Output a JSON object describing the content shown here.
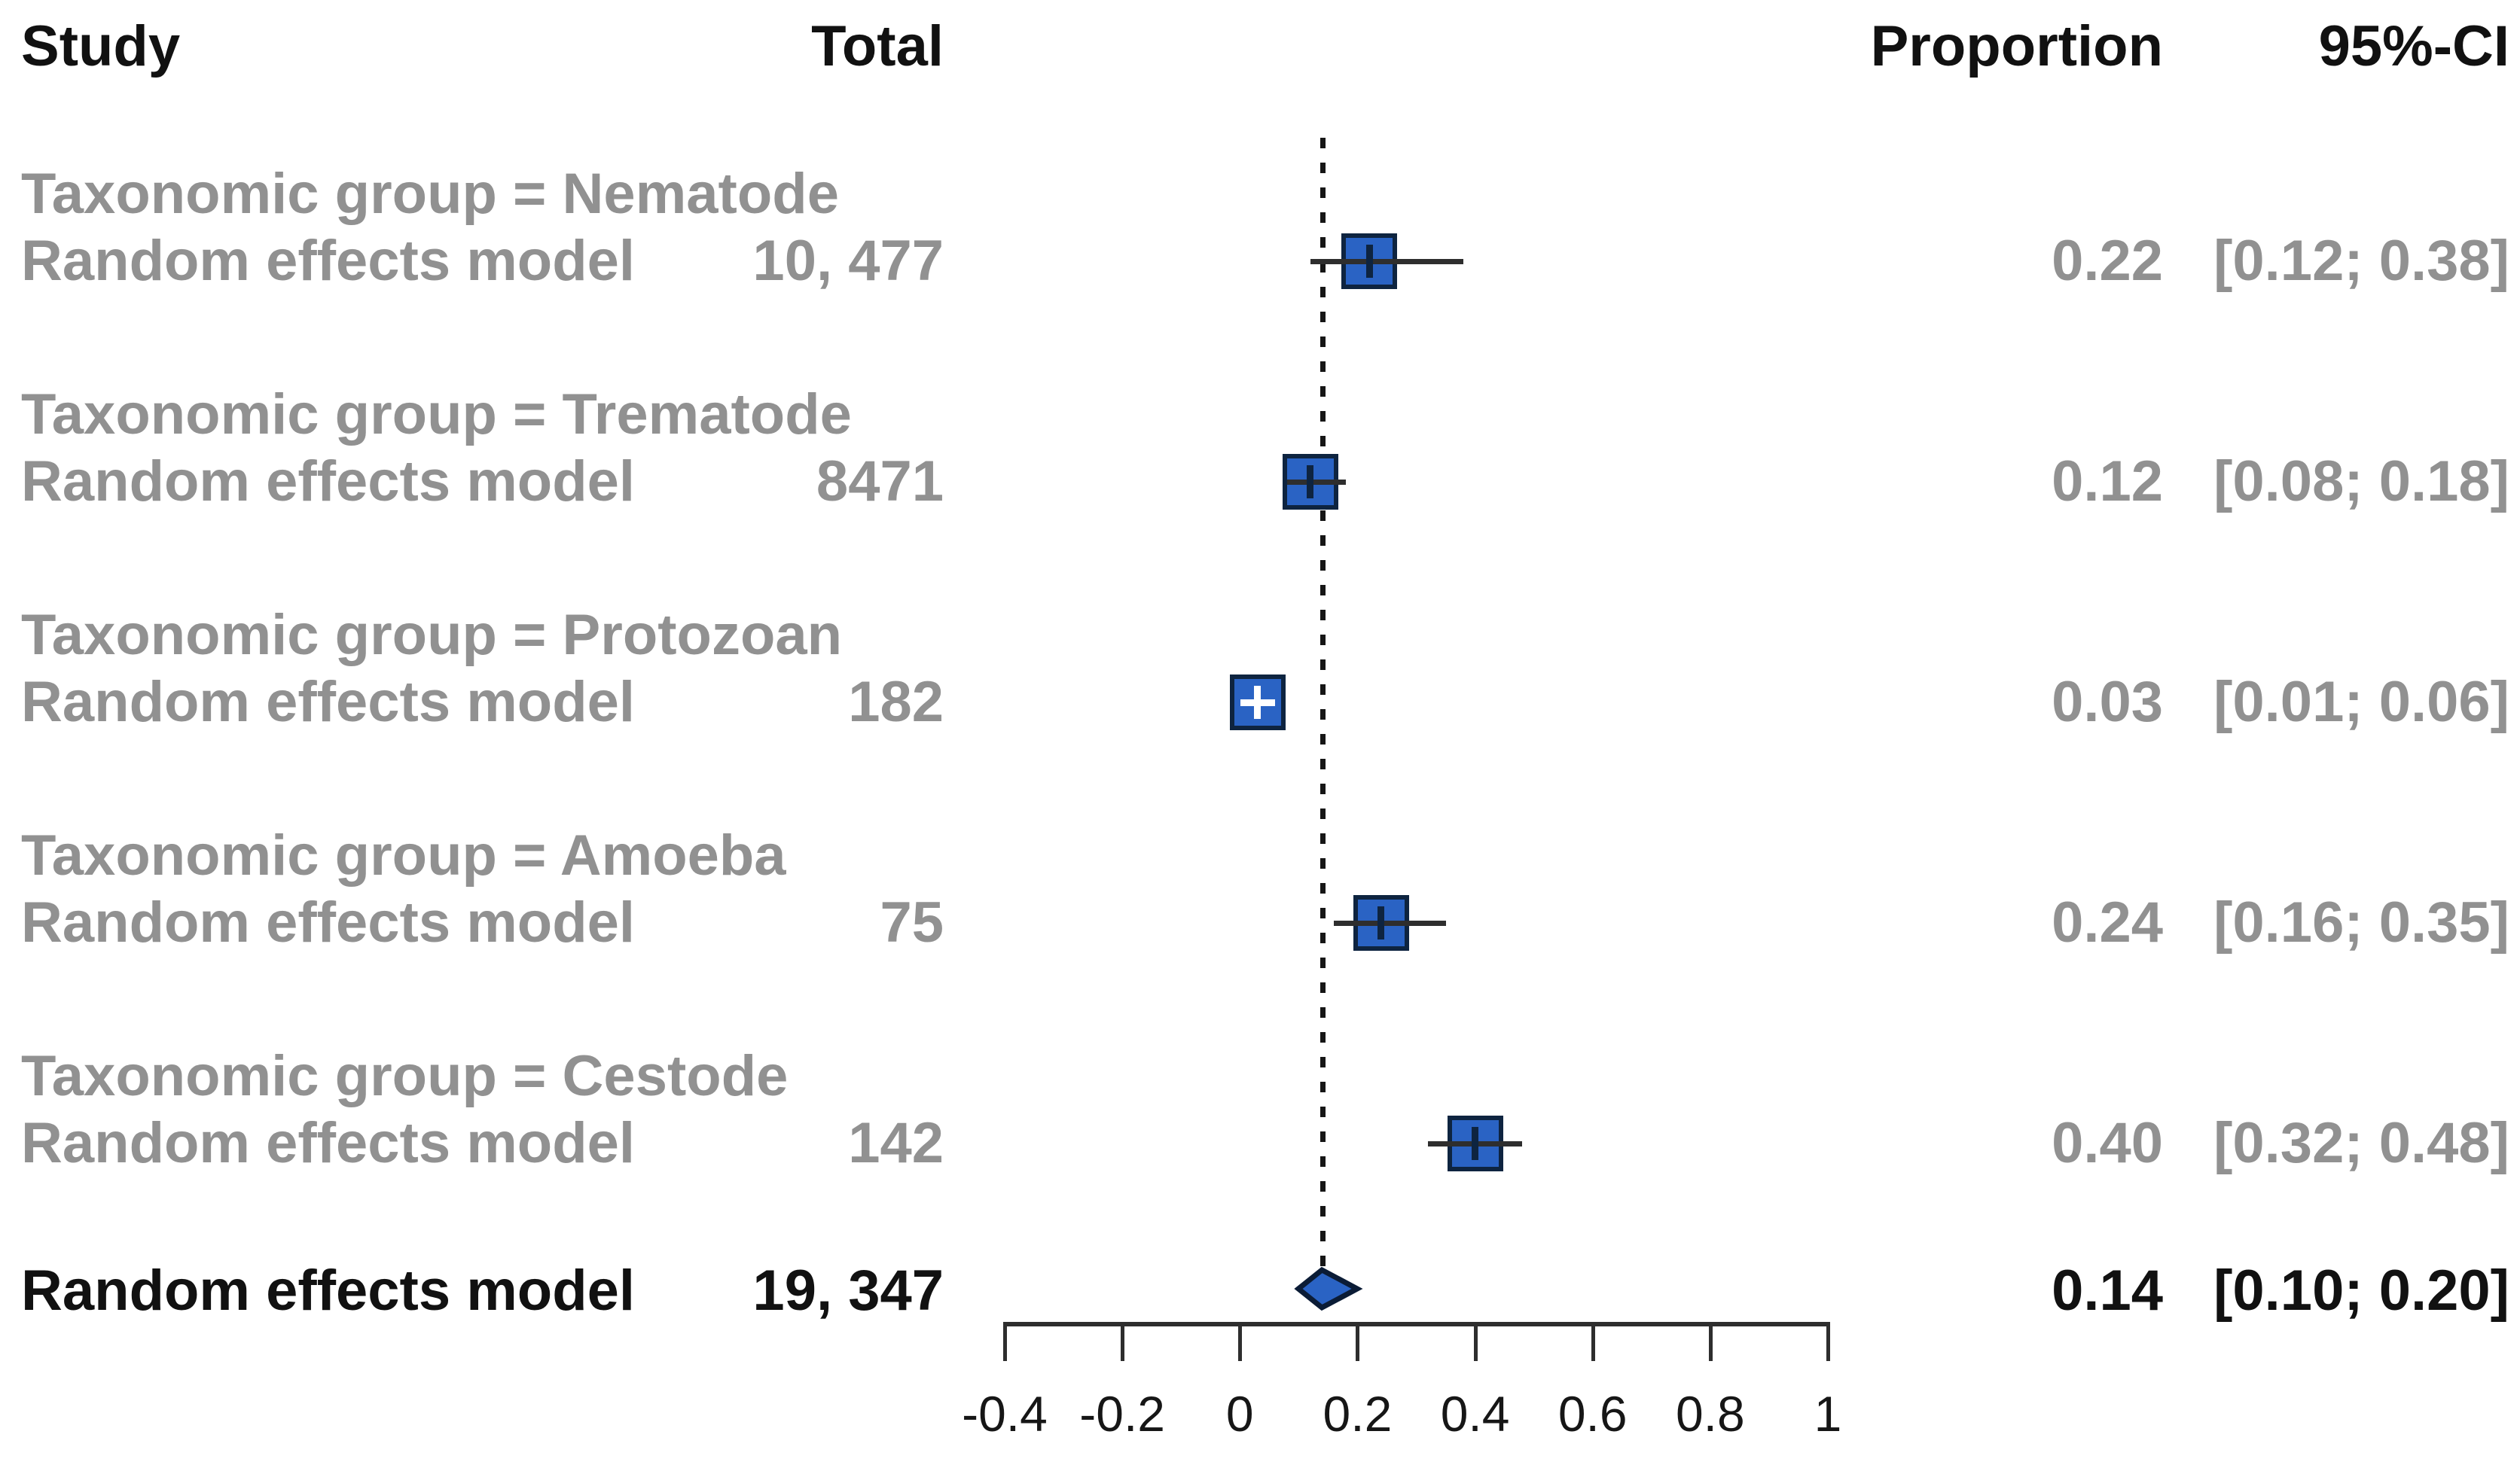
{
  "chart_data": {
    "type": "forest",
    "headers": {
      "study": "Study",
      "total": "Total",
      "proportion": "Proportion",
      "ci": "95%-CI"
    },
    "groups": [
      {
        "label": "Taxonomic group = Nematode",
        "model_label": "Random effects model",
        "total": "10, 477",
        "proportion": 0.22,
        "ci_low": 0.12,
        "ci_high": 0.38,
        "proportion_text": "0.22",
        "ci_text": "[0.12; 0.38]",
        "inner_marker": "dark"
      },
      {
        "label": "Taxonomic group = Trematode",
        "model_label": "Random effects model",
        "total": "8471",
        "proportion": 0.12,
        "ci_low": 0.08,
        "ci_high": 0.18,
        "proportion_text": "0.12",
        "ci_text": "[0.08; 0.18]",
        "inner_marker": "dark"
      },
      {
        "label": "Taxonomic group = Protozoan",
        "model_label": "Random effects model",
        "total": "182",
        "proportion": 0.03,
        "ci_low": 0.01,
        "ci_high": 0.06,
        "proportion_text": "0.03",
        "ci_text": "[0.01; 0.06]",
        "inner_marker": "white"
      },
      {
        "label": "Taxonomic group = Amoeba",
        "model_label": "Random effects model",
        "total": "75",
        "proportion": 0.24,
        "ci_low": 0.16,
        "ci_high": 0.35,
        "proportion_text": "0.24",
        "ci_text": "[0.16; 0.35]",
        "inner_marker": "dark"
      },
      {
        "label": "Taxonomic group = Cestode",
        "model_label": "Random effects model",
        "total": "142",
        "proportion": 0.4,
        "ci_low": 0.32,
        "ci_high": 0.48,
        "proportion_text": "0.40",
        "ci_text": "[0.32; 0.48]",
        "inner_marker": "dark"
      }
    ],
    "overall": {
      "label": "Random effects model",
      "total": "19, 347",
      "proportion": 0.14,
      "ci_low": 0.1,
      "ci_high": 0.2,
      "proportion_text": "0.14",
      "ci_text": "[0.10; 0.20]"
    },
    "reference_line": 0.14,
    "axis": {
      "min": -0.4,
      "max": 1,
      "ticks": [
        -0.4,
        -0.2,
        0,
        0.2,
        0.4,
        0.6,
        0.8,
        1
      ],
      "tick_labels": [
        "-0.4",
        "-0.2",
        "0",
        "0.2",
        "0.4",
        "0.6",
        "0.8",
        "1"
      ],
      "grid": false
    },
    "colors": {
      "square_fill": "#2a63c4",
      "square_border": "#0e2440",
      "diamond_fill": "#2a63c4",
      "diamond_border": "#0b1c36",
      "ci_line": "#2e2e2e",
      "group_text": "#919191",
      "header_text": "#111111",
      "white_marker": "#ffffff"
    }
  }
}
